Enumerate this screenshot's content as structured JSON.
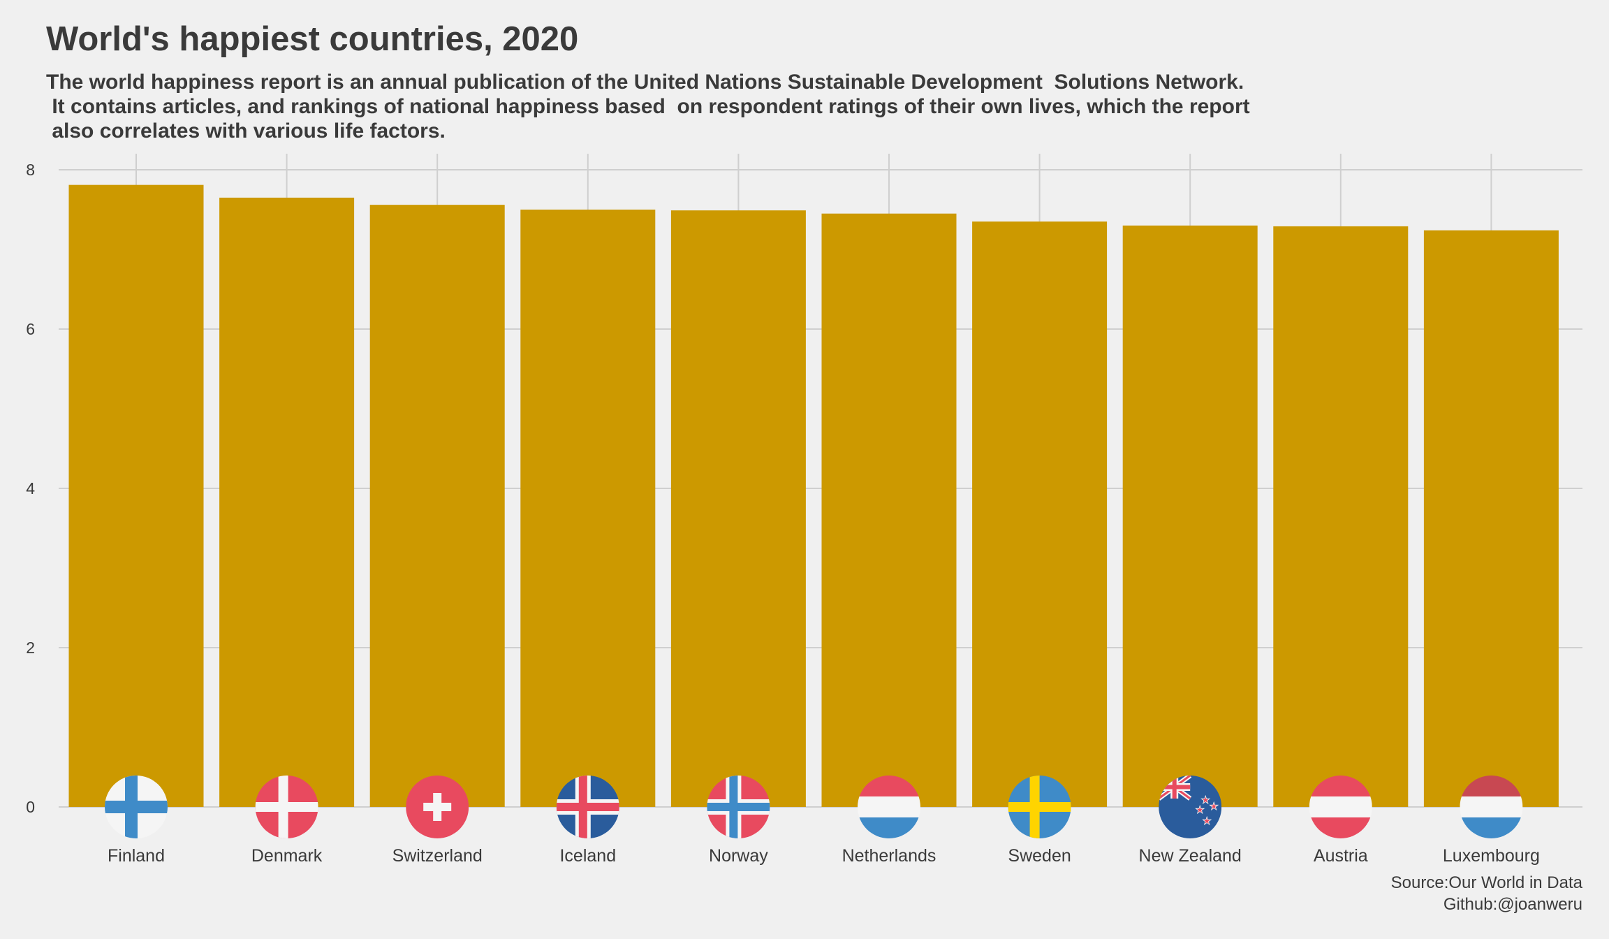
{
  "chart_data": {
    "type": "bar",
    "title": "World's happiest countries, 2020",
    "subtitle": "The world happiness report is an annual publication of the United Nations Sustainable Development  Solutions Network.\n It contains articles, and rankings of national happiness based  on respondent ratings of their own lives, which the report\n also correlates with various life factors.",
    "xlabel": "",
    "ylabel": "",
    "categories": [
      "Finland",
      "Denmark",
      "Switzerland",
      "Iceland",
      "Norway",
      "Netherlands",
      "Sweden",
      "New Zealand",
      "Austria",
      "Luxembourg"
    ],
    "values": [
      7.81,
      7.65,
      7.56,
      7.5,
      7.49,
      7.45,
      7.35,
      7.3,
      7.29,
      7.24
    ],
    "ylim": [
      0,
      8
    ],
    "yticks": [
      "0",
      "2",
      "4",
      "6",
      "8"
    ],
    "bar_color": "#cc9900",
    "grid": true,
    "flags": [
      "finland-flag-icon",
      "denmark-flag-icon",
      "switzerland-flag-icon",
      "iceland-flag-icon",
      "norway-flag-icon",
      "netherlands-flag-icon",
      "sweden-flag-icon",
      "new-zealand-flag-icon",
      "austria-flag-icon",
      "luxembourg-flag-icon"
    ]
  },
  "caption": {
    "source": "Source:Our World in Data",
    "github": "Github:@joanweru"
  }
}
